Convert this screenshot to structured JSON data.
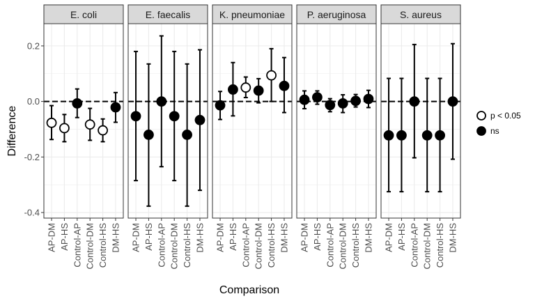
{
  "chart_data": {
    "type": "scatter",
    "subtype": "faceted point-and-errorbar",
    "xlabel": "Comparison",
    "ylabel": "Difference",
    "ylim": [
      -0.42,
      0.28
    ],
    "yticks": [
      0.2,
      0.0,
      -0.2,
      -0.4
    ],
    "ytick_labels": [
      "0.2",
      "0.0",
      "-0.2",
      "-0.4"
    ],
    "reference_line": 0.0,
    "categories": [
      "AP-DM",
      "AP-HS",
      "Control-AP",
      "Control-DM",
      "Control-HS",
      "DM-HS"
    ],
    "legend": {
      "position": "right",
      "entries": [
        {
          "key": "sig",
          "label": "p < 0.05",
          "fill": "#ffffff",
          "stroke": "#000000"
        },
        {
          "key": "ns",
          "label": "ns",
          "fill": "#000000",
          "stroke": "#000000"
        }
      ]
    },
    "panels": [
      {
        "name": "E. coli",
        "points": [
          {
            "category": "AP-DM",
            "value": -0.077,
            "low": -0.137,
            "high": -0.015,
            "group": "sig"
          },
          {
            "category": "AP-HS",
            "value": -0.096,
            "low": -0.145,
            "high": -0.047,
            "group": "sig"
          },
          {
            "category": "Control-AP",
            "value": -0.007,
            "low": -0.058,
            "high": 0.045,
            "group": "ns"
          },
          {
            "category": "Control-DM",
            "value": -0.083,
            "low": -0.14,
            "high": -0.025,
            "group": "sig"
          },
          {
            "category": "Control-HS",
            "value": -0.104,
            "low": -0.145,
            "high": -0.063,
            "group": "sig"
          },
          {
            "category": "DM-HS",
            "value": -0.021,
            "low": -0.075,
            "high": 0.032,
            "group": "ns"
          }
        ]
      },
      {
        "name": "E. faecalis",
        "points": [
          {
            "category": "AP-DM",
            "value": -0.053,
            "low": -0.285,
            "high": 0.18,
            "group": "ns"
          },
          {
            "category": "AP-HS",
            "value": -0.12,
            "low": -0.377,
            "high": 0.135,
            "group": "ns"
          },
          {
            "category": "Control-AP",
            "value": 0.0,
            "low": -0.235,
            "high": 0.236,
            "group": "ns"
          },
          {
            "category": "Control-DM",
            "value": -0.053,
            "low": -0.285,
            "high": 0.18,
            "group": "ns"
          },
          {
            "category": "Control-HS",
            "value": -0.12,
            "low": -0.377,
            "high": 0.135,
            "group": "ns"
          },
          {
            "category": "DM-HS",
            "value": -0.067,
            "low": -0.32,
            "high": 0.186,
            "group": "ns"
          }
        ]
      },
      {
        "name": "K. pneumoniae",
        "points": [
          {
            "category": "AP-DM",
            "value": -0.014,
            "low": -0.065,
            "high": 0.036,
            "group": "ns"
          },
          {
            "category": "AP-HS",
            "value": 0.043,
            "low": -0.052,
            "high": 0.14,
            "group": "ns"
          },
          {
            "category": "Control-AP",
            "value": 0.05,
            "low": 0.014,
            "high": 0.088,
            "group": "sig"
          },
          {
            "category": "Control-DM",
            "value": 0.039,
            "low": -0.005,
            "high": 0.082,
            "group": "ns"
          },
          {
            "category": "Control-HS",
            "value": 0.094,
            "low": 0.0,
            "high": 0.19,
            "group": "sig"
          },
          {
            "category": "DM-HS",
            "value": 0.056,
            "low": -0.04,
            "high": 0.158,
            "group": "ns"
          }
        ]
      },
      {
        "name": "P. aeruginosa",
        "points": [
          {
            "category": "AP-DM",
            "value": 0.006,
            "low": -0.026,
            "high": 0.038,
            "group": "ns"
          },
          {
            "category": "AP-HS",
            "value": 0.015,
            "low": -0.01,
            "high": 0.038,
            "group": "ns"
          },
          {
            "category": "Control-AP",
            "value": -0.013,
            "low": -0.037,
            "high": 0.01,
            "group": "ns"
          },
          {
            "category": "Control-DM",
            "value": -0.007,
            "low": -0.04,
            "high": 0.024,
            "group": "ns"
          },
          {
            "category": "Control-HS",
            "value": 0.002,
            "low": -0.02,
            "high": 0.025,
            "group": "ns"
          },
          {
            "category": "DM-HS",
            "value": 0.009,
            "low": -0.022,
            "high": 0.04,
            "group": "ns"
          }
        ]
      },
      {
        "name": "S. aureus",
        "points": [
          {
            "category": "AP-DM",
            "value": -0.122,
            "low": -0.325,
            "high": 0.083,
            "group": "ns"
          },
          {
            "category": "AP-HS",
            "value": -0.122,
            "low": -0.325,
            "high": 0.083,
            "group": "ns"
          },
          {
            "category": "Control-AP",
            "value": 0.0,
            "low": -0.203,
            "high": 0.205,
            "group": "ns"
          },
          {
            "category": "Control-DM",
            "value": -0.122,
            "low": -0.325,
            "high": 0.083,
            "group": "ns"
          },
          {
            "category": "Control-HS",
            "value": -0.122,
            "low": -0.325,
            "high": 0.083,
            "group": "ns"
          },
          {
            "category": "DM-HS",
            "value": 0.0,
            "low": -0.208,
            "high": 0.208,
            "group": "ns"
          }
        ]
      }
    ],
    "grid": true,
    "colors": {
      "panel_border": "#333333",
      "strip_fill": "#d9d9d9",
      "grid": "#ebebeb",
      "point": "#000000"
    }
  }
}
